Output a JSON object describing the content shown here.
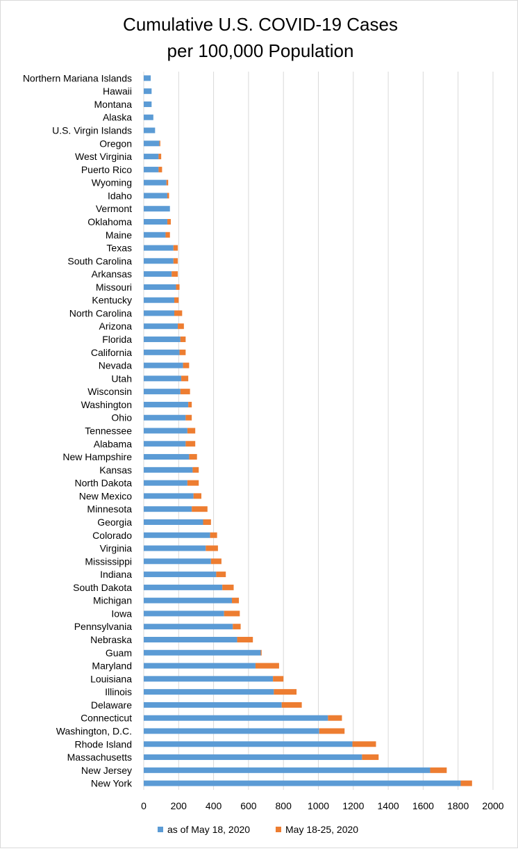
{
  "chart_data": {
    "type": "bar",
    "orientation": "horizontal",
    "stacked": true,
    "title_lines": [
      "Cumulative U.S. COVID-19 Cases",
      "per 100,000 Population"
    ],
    "xlabel": "",
    "ylabel": "",
    "xlim": [
      0,
      2000
    ],
    "x_ticks": [
      0,
      200,
      400,
      600,
      800,
      1000,
      1200,
      1400,
      1600,
      1800,
      2000
    ],
    "grid": "vertical",
    "legend_position": "bottom",
    "categories": [
      "New York",
      "New Jersey",
      "Massachusetts",
      "Rhode Island",
      "Washington, D.C.",
      "Connecticut",
      "Delaware",
      "Illinois",
      "Louisiana",
      "Maryland",
      "Guam",
      "Nebraska",
      "Pennsylvania",
      "Iowa",
      "Michigan",
      "South Dakota",
      "Indiana",
      "Mississippi",
      "Virginia",
      "Colorado",
      "Georgia",
      "Minnesota",
      "New Mexico",
      "North Dakota",
      "Kansas",
      "New Hampshire",
      "Alabama",
      "Tennessee",
      "Ohio",
      "Washington",
      "Wisconsin",
      "Utah",
      "Nevada",
      "California",
      "Florida",
      "Arizona",
      "North Carolina",
      "Kentucky",
      "Missouri",
      "Arkansas",
      "South Carolina",
      "Texas",
      "Maine",
      "Oklahoma",
      "Vermont",
      "Idaho",
      "Wyoming",
      "Puerto Rico",
      "West Virginia",
      "Oregon",
      "U.S. Virgin Islands",
      "Alaska",
      "Montana",
      "Hawaii",
      "Northern Mariana Islands"
    ],
    "series": [
      {
        "name": "as of May 18, 2020",
        "color": "#5b9bd5",
        "values": [
          1815,
          1640,
          1250,
          1195,
          1005,
          1055,
          790,
          745,
          740,
          640,
          670,
          535,
          510,
          460,
          505,
          450,
          415,
          385,
          355,
          380,
          340,
          275,
          285,
          250,
          280,
          260,
          240,
          250,
          240,
          255,
          210,
          215,
          225,
          205,
          210,
          195,
          175,
          175,
          185,
          160,
          170,
          170,
          125,
          135,
          150,
          135,
          130,
          85,
          85,
          90,
          65,
          55,
          45,
          45,
          40
        ]
      },
      {
        "name": "May 18-25, 2020",
        "color": "#ed7d31",
        "values": [
          65,
          95,
          95,
          135,
          145,
          80,
          115,
          130,
          60,
          135,
          5,
          90,
          45,
          90,
          40,
          65,
          55,
          60,
          70,
          40,
          45,
          90,
          45,
          65,
          35,
          45,
          55,
          45,
          35,
          20,
          55,
          40,
          35,
          35,
          30,
          35,
          45,
          25,
          20,
          35,
          25,
          25,
          25,
          20,
          0,
          10,
          10,
          20,
          15,
          5,
          0,
          0,
          0,
          0,
          0
        ]
      }
    ]
  }
}
